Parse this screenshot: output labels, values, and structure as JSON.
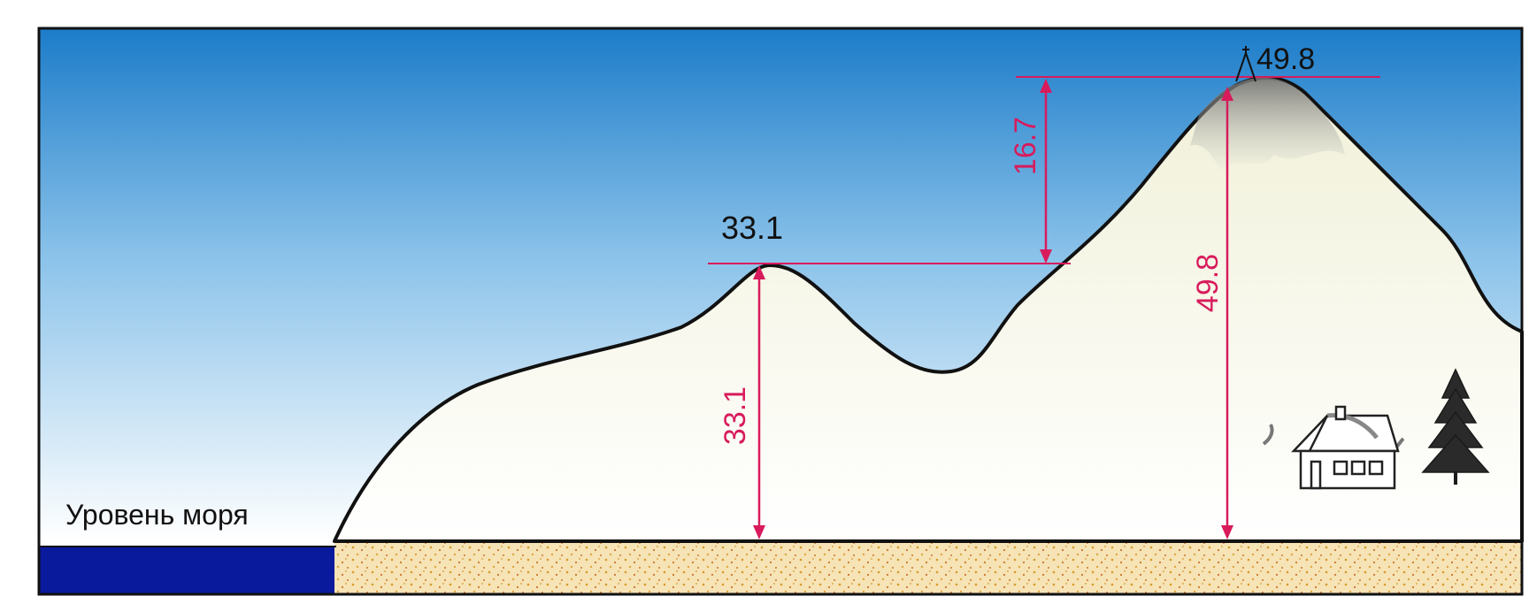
{
  "labels": {
    "sea_level": "Уровень моря",
    "peak_small": "33.1",
    "peak_large": "49.8",
    "dim_small_height": "33.1",
    "dim_relative": "16.7",
    "dim_large_height": "49.8"
  },
  "colors": {
    "sky_top": "#1e7fcb",
    "sky_bottom": "#ffffff",
    "sea": "#0a1a9c",
    "ground": "#f6e3b6",
    "ground_dots": "#d89a2a",
    "outline": "#111111",
    "measure": "#d81b5c",
    "summit_shade": "#8a8a8a"
  },
  "icons": [
    "survey-marker-icon",
    "house-icon",
    "tree-icon"
  ]
}
